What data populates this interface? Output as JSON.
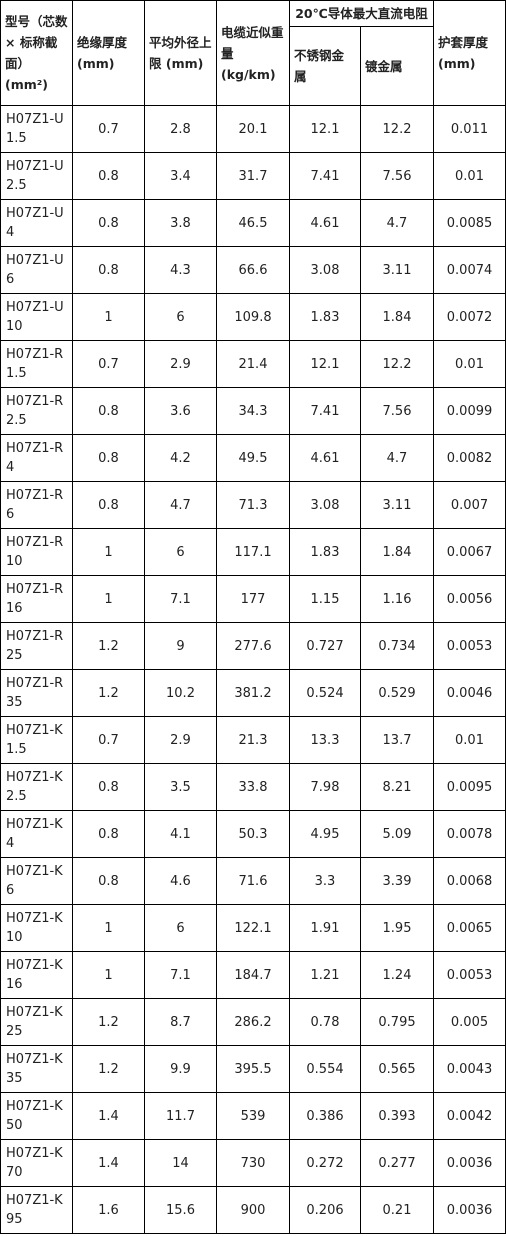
{
  "header": {
    "model": "型号（芯数 × 标称截面）(mm²)",
    "insulation": "绝缘厚度 (mm)",
    "outer_diameter": "平均外径上限 (mm)",
    "weight": "电缆近似重量 (kg/km)",
    "resistance_group": "20℃导体最大直流电阻",
    "stainless": "不锈钢金属",
    "plated": "镀金属",
    "sheath": "护套厚度 (mm)"
  },
  "rows": [
    [
      "H07Z1-U 1.5",
      "0.7",
      "2.8",
      "20.1",
      "12.1",
      "12.2",
      "0.011"
    ],
    [
      "H07Z1-U 2.5",
      "0.8",
      "3.4",
      "31.7",
      "7.41",
      "7.56",
      "0.01"
    ],
    [
      "H07Z1-U 4",
      "0.8",
      "3.8",
      "46.5",
      "4.61",
      "4.7",
      "0.0085"
    ],
    [
      "H07Z1-U 6",
      "0.8",
      "4.3",
      "66.6",
      "3.08",
      "3.11",
      "0.0074"
    ],
    [
      "H07Z1-U 10",
      "1",
      "6",
      "109.8",
      "1.83",
      "1.84",
      "0.0072"
    ],
    [
      "H07Z1-R 1.5",
      "0.7",
      "2.9",
      "21.4",
      "12.1",
      "12.2",
      "0.01"
    ],
    [
      "H07Z1-R 2.5",
      "0.8",
      "3.6",
      "34.3",
      "7.41",
      "7.56",
      "0.0099"
    ],
    [
      "H07Z1-R 4",
      "0.8",
      "4.2",
      "49.5",
      "4.61",
      "4.7",
      "0.0082"
    ],
    [
      "H07Z1-R 6",
      "0.8",
      "4.7",
      "71.3",
      "3.08",
      "3.11",
      "0.007"
    ],
    [
      "H07Z1-R 10",
      "1",
      "6",
      "117.1",
      "1.83",
      "1.84",
      "0.0067"
    ],
    [
      "H07Z1-R 16",
      "1",
      "7.1",
      "177",
      "1.15",
      "1.16",
      "0.0056"
    ],
    [
      "H07Z1-R 25",
      "1.2",
      "9",
      "277.6",
      "0.727",
      "0.734",
      "0.0053"
    ],
    [
      "H07Z1-R 35",
      "1.2",
      "10.2",
      "381.2",
      "0.524",
      "0.529",
      "0.0046"
    ],
    [
      "H07Z1-K 1.5",
      "0.7",
      "2.9",
      "21.3",
      "13.3",
      "13.7",
      "0.01"
    ],
    [
      "H07Z1-K 2.5",
      "0.8",
      "3.5",
      "33.8",
      "7.98",
      "8.21",
      "0.0095"
    ],
    [
      "H07Z1-K 4",
      "0.8",
      "4.1",
      "50.3",
      "4.95",
      "5.09",
      "0.0078"
    ],
    [
      "H07Z1-K 6",
      "0.8",
      "4.6",
      "71.6",
      "3.3",
      "3.39",
      "0.0068"
    ],
    [
      "H07Z1-K 10",
      "1",
      "6",
      "122.1",
      "1.91",
      "1.95",
      "0.0065"
    ],
    [
      "H07Z1-K 16",
      "1",
      "7.1",
      "184.7",
      "1.21",
      "1.24",
      "0.0053"
    ],
    [
      "H07Z1-K 25",
      "1.2",
      "8.7",
      "286.2",
      "0.78",
      "0.795",
      "0.005"
    ],
    [
      "H07Z1-K 35",
      "1.2",
      "9.9",
      "395.5",
      "0.554",
      "0.565",
      "0.0043"
    ],
    [
      "H07Z1-K 50",
      "1.4",
      "11.7",
      "539",
      "0.386",
      "0.393",
      "0.0042"
    ],
    [
      "H07Z1-K 70",
      "1.4",
      "14",
      "730",
      "0.272",
      "0.277",
      "0.0036"
    ],
    [
      "H07Z1-K 95",
      "1.6",
      "15.6",
      "900",
      "0.206",
      "0.21",
      "0.0036"
    ]
  ]
}
